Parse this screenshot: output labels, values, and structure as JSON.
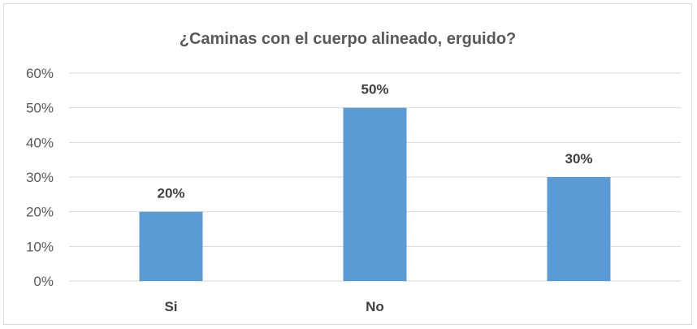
{
  "chart_data": {
    "type": "bar",
    "title": "¿Caminas con el cuerpo alineado, erguido?",
    "categories": [
      "Si",
      "No",
      ""
    ],
    "values": [
      20,
      50,
      30
    ],
    "data_labels": [
      "20%",
      "50%",
      "30%"
    ],
    "ylim": [
      0,
      60
    ],
    "yticks": [
      0,
      10,
      20,
      30,
      40,
      50,
      60
    ],
    "ytick_labels": [
      "0%",
      "10%",
      "20%",
      "30%",
      "40%",
      "50%",
      "60%"
    ],
    "xlabel": "",
    "ylabel": "",
    "grid": true,
    "legend": "none",
    "bar_color": "#5b9bd5",
    "grid_color": "#d9d9d9"
  }
}
